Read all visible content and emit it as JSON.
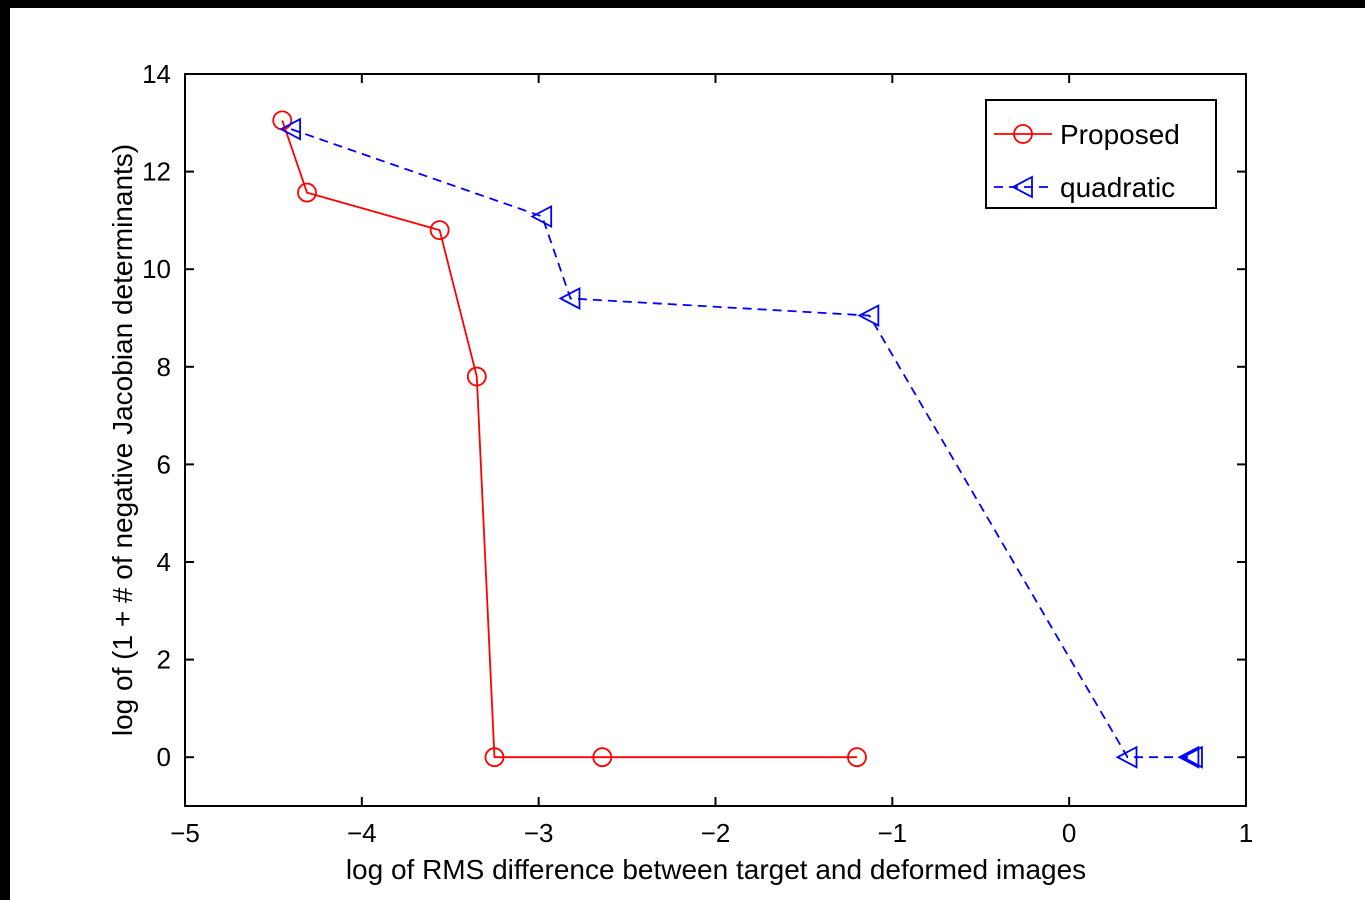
{
  "chart_data": {
    "type": "line",
    "title": "",
    "xlabel": "log of RMS difference between target and deformed images",
    "ylabel": "log of (1 + # of negative Jacobian determinants)",
    "xlim": [
      -5,
      1
    ],
    "ylim": [
      -1,
      14
    ],
    "xticks": [
      "−5",
      "−4",
      "−3",
      "−2",
      "−1",
      "0",
      "1"
    ],
    "yticks": [
      "0",
      "2",
      "4",
      "6",
      "8",
      "10",
      "12",
      "14"
    ],
    "grid": false,
    "legend_position": "top-right",
    "series": [
      {
        "name": "Proposed",
        "color": "#ff0000",
        "line_style": "solid",
        "marker": "circle",
        "x": [
          -4.45,
          -4.31,
          -3.56,
          -3.35,
          -3.25,
          -2.64,
          -1.2
        ],
        "y": [
          13.05,
          11.57,
          10.8,
          7.8,
          0,
          0,
          0
        ]
      },
      {
        "name": "quadratic",
        "color": "#0000ff",
        "line_style": "dashed",
        "marker": "triangle-left",
        "x": [
          -4.4,
          -2.98,
          -2.82,
          -1.13,
          0.33,
          0.68,
          0.7
        ],
        "y": [
          12.87,
          11.08,
          9.4,
          9.05,
          0,
          0,
          0
        ]
      }
    ]
  }
}
